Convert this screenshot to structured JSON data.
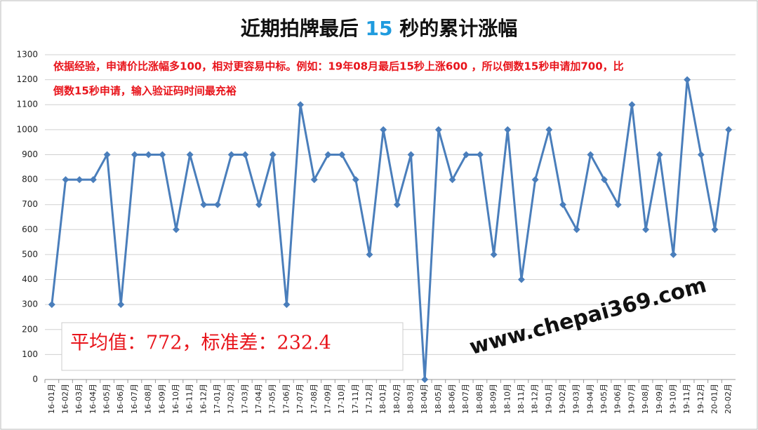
{
  "chart_data": {
    "type": "line",
    "title": [
      "近期拍牌最后 ",
      "15",
      " 秒的累计涨幅"
    ],
    "title_highlight_color": "#1f9bde",
    "annotation": [
      "依据经验，申请价比涨幅多100，相对更容易中标。例如：19年08月最后15秒上涨600 ，所以倒数15秒申请加700，比",
      "倒数15秒申请，输入验证码时间最充裕"
    ],
    "annotation_color": "#e8141b",
    "stats_label": "平均值：772，标准差：232.4",
    "watermark": "www.chepai369.com",
    "categories": [
      "16-01月",
      "16-02月",
      "16-03月",
      "16-04月",
      "16-05月",
      "16-06月",
      "16-07月",
      "16-08月",
      "16-09月",
      "16-10月",
      "16-11月",
      "16-12月",
      "17-01月",
      "17-02月",
      "17-03月",
      "17-04月",
      "17-05月",
      "17-06月",
      "17-07月",
      "17-08月",
      "17-09月",
      "17-10月",
      "17-11月",
      "17-12月",
      "18-01月",
      "18-02月",
      "18-03月",
      "18-04月",
      "18-05月",
      "18-06月",
      "18-07月",
      "18-08月",
      "18-09月",
      "18-10月",
      "18-11月",
      "18-12月",
      "19-01月",
      "19-02月",
      "19-03月",
      "19-04月",
      "19-05月",
      "19-06月",
      "19-07月",
      "19-08月",
      "19-09月",
      "19-10月",
      "19-11月",
      "19-12月",
      "20-01月",
      "20-02月"
    ],
    "values": [
      300,
      800,
      800,
      800,
      900,
      300,
      900,
      900,
      900,
      600,
      900,
      700,
      700,
      900,
      900,
      700,
      900,
      300,
      1100,
      800,
      900,
      900,
      800,
      500,
      1000,
      700,
      900,
      0,
      1000,
      800,
      900,
      900,
      500,
      1000,
      400,
      800,
      1000,
      700,
      600,
      900,
      800,
      700,
      1100,
      600,
      900,
      500,
      1200,
      900,
      600,
      1000
    ],
    "color": "#4a7ebb",
    "ylim": [
      0,
      1300
    ],
    "yticks": [
      0,
      100,
      200,
      300,
      400,
      500,
      600,
      700,
      800,
      900,
      1000,
      1100,
      1200,
      1300
    ],
    "grid": true
  }
}
